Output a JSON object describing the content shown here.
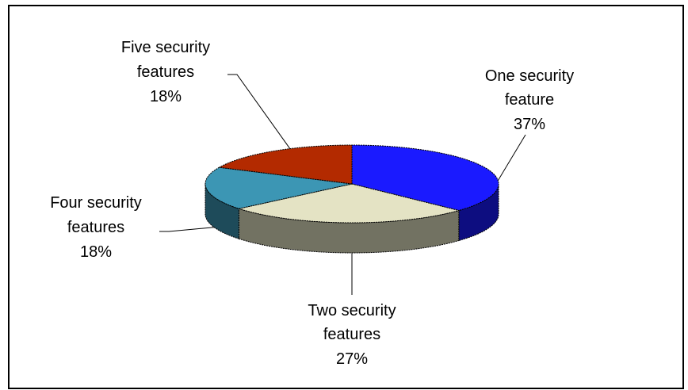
{
  "chart_data": {
    "type": "pie",
    "style": "3d",
    "title": "",
    "slices": [
      {
        "key": "one",
        "label_lines": [
          "One security",
          "feature"
        ],
        "percent_text": "37%",
        "value": 37,
        "color": "#1a1aff"
      },
      {
        "key": "two",
        "label_lines": [
          "Two security",
          "features"
        ],
        "percent_text": "27%",
        "value": 27,
        "color": "#e4e3c4"
      },
      {
        "key": "four",
        "label_lines": [
          "Four security",
          "features"
        ],
        "percent_text": "18%",
        "value": 18,
        "color": "#3c96b4"
      },
      {
        "key": "five",
        "label_lines": [
          "Five security",
          "features"
        ],
        "percent_text": "18%",
        "value": 18,
        "color": "#b32a00"
      }
    ]
  }
}
